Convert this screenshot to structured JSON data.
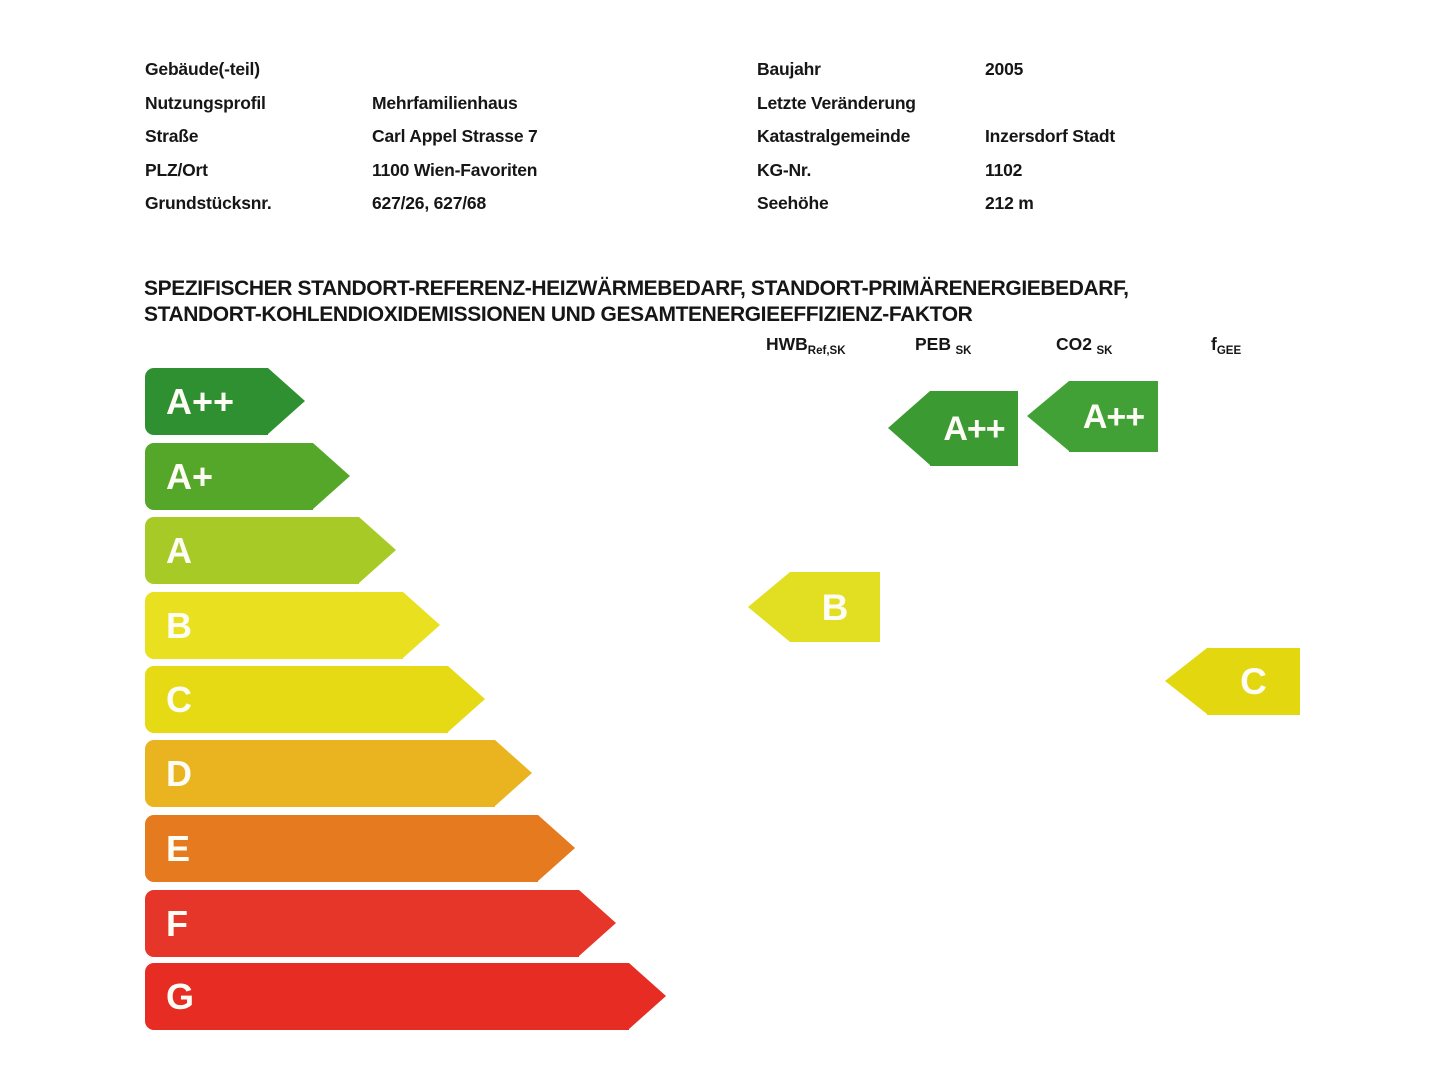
{
  "info": {
    "left": [
      {
        "label": "Gebäude(-teil)",
        "value": ""
      },
      {
        "label": "Nutzungsprofil",
        "value": "Mehrfamilienhaus"
      },
      {
        "label": "Straße",
        "value": "Carl Appel Strasse 7"
      },
      {
        "label": "PLZ/Ort",
        "value": "1100 Wien-Favoriten"
      },
      {
        "label": "Grundstücksnr.",
        "value": "627/26, 627/68"
      }
    ],
    "right": [
      {
        "label": "Baujahr",
        "value": "2005"
      },
      {
        "label": "Letzte Veränderung",
        "value": ""
      },
      {
        "label": "Katastralgemeinde",
        "value": "Inzersdorf Stadt"
      },
      {
        "label": "KG-Nr.",
        "value": "1102"
      },
      {
        "label": "Seehöhe",
        "value": "212 m"
      }
    ]
  },
  "heading": {
    "line1": "SPEZIFISCHER STANDORT-REFERENZ-HEIZWÄRMEBEDARF, STANDORT-PRIMÄRENERGIEBEDARF,",
    "line2": "STANDORT-KOHLENDIOXIDEMISSIONEN UND GESAMTENERGIEEFFIZIENZ-FAKTOR"
  },
  "metric_headers": [
    {
      "main": "HWB",
      "sub": "Ref,SK"
    },
    {
      "main": "PEB",
      "sub": "SK"
    },
    {
      "main": "CO2",
      "sub": "SK"
    },
    {
      "main": "f",
      "sub": "GEE"
    }
  ],
  "chart_data": {
    "type": "energy-efficiency-label",
    "scale_classes": [
      {
        "label": "A++",
        "color": "#2e9030"
      },
      {
        "label": "A+",
        "color": "#55a729"
      },
      {
        "label": "A",
        "color": "#a8ca26"
      },
      {
        "label": "B",
        "color": "#e9e120"
      },
      {
        "label": "C",
        "color": "#e6da15"
      },
      {
        "label": "D",
        "color": "#e9b41f"
      },
      {
        "label": "E",
        "color": "#e57a1f"
      },
      {
        "label": "F",
        "color": "#e63529"
      },
      {
        "label": "G",
        "color": "#e62c23"
      }
    ],
    "ratings": [
      {
        "metric": "HWB Ref,SK",
        "class": "B",
        "color": "#e2de22"
      },
      {
        "metric": "PEB SK",
        "class": "A++",
        "color": "#3c9a33"
      },
      {
        "metric": "CO2 SK",
        "class": "A++",
        "color": "#41a137"
      },
      {
        "metric": "f GEE",
        "class": "C",
        "color": "#e3d70f"
      }
    ]
  }
}
